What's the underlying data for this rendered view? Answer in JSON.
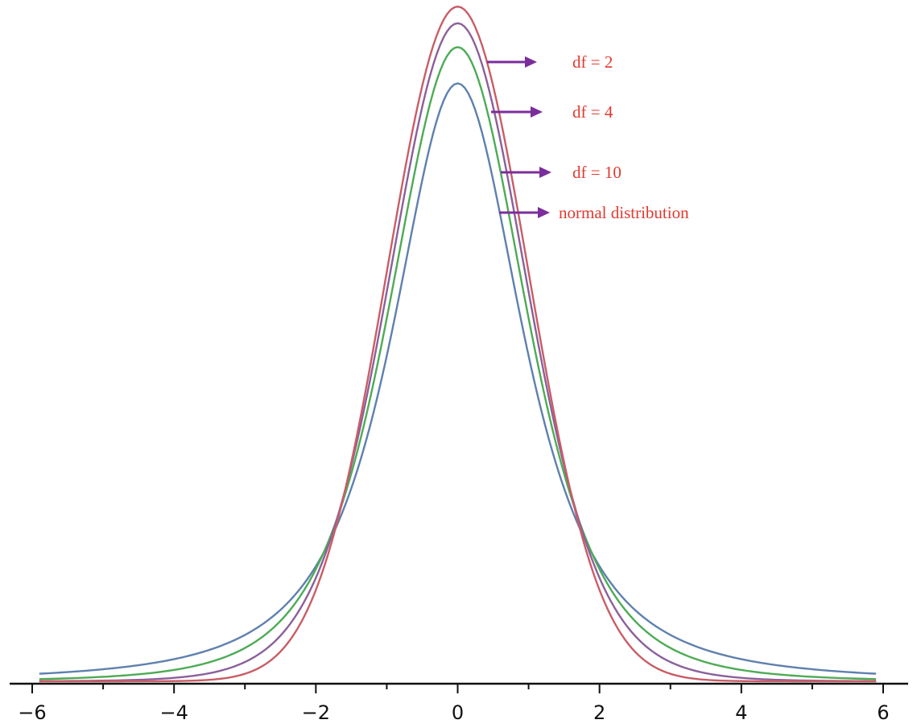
{
  "chart_data": {
    "type": "line",
    "title": "",
    "xlabel": "",
    "ylabel": "",
    "xlim": [
      -6,
      6
    ],
    "ylim": [
      0,
      0.4
    ],
    "grid": false,
    "x_range": [
      -5.9,
      5.9
    ],
    "x_ticks": [
      -6,
      -4,
      -2,
      0,
      2,
      4,
      6
    ],
    "x_minor_ticks": [
      -5,
      -3,
      -1,
      1,
      3,
      5
    ],
    "x_tick_labels": [
      "−6",
      "−4",
      "−2",
      "0",
      "2",
      "4",
      "6"
    ],
    "series": [
      {
        "name": "df = 2",
        "kind": "t",
        "df": 2,
        "color": "#5e80ae"
      },
      {
        "name": "df = 4",
        "kind": "t",
        "df": 4,
        "color": "#4dab55"
      },
      {
        "name": "df = 10",
        "kind": "t",
        "df": 10,
        "color": "#8b609a"
      },
      {
        "name": "normal distribution",
        "kind": "normal",
        "color": "#c95d66"
      }
    ],
    "annotations": [
      {
        "text": "df = 2",
        "color": "#e03a2f",
        "arrow_color": "#7b2d9b"
      },
      {
        "text": "df = 4",
        "color": "#e03a2f",
        "arrow_color": "#7b2d9b"
      },
      {
        "text": "df = 10",
        "color": "#e03a2f",
        "arrow_color": "#7b2d9b"
      },
      {
        "text": "normal distribution",
        "color": "#e03a2f",
        "arrow_color": "#7b2d9b"
      }
    ]
  }
}
